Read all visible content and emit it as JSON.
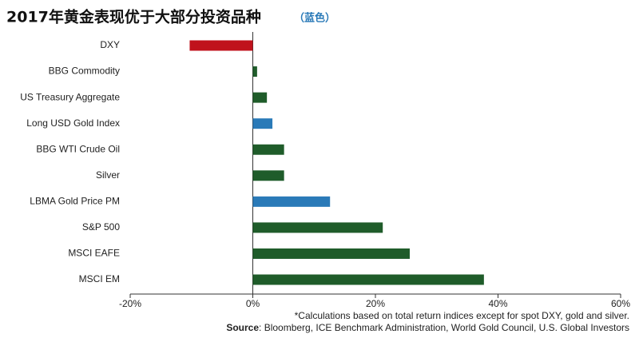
{
  "chart_data": {
    "type": "hbar",
    "title": "2017年黄金表现优于大部分投资品种",
    "subtitle": "（蓝色）",
    "categories": [
      "DXY",
      "BBG Commodity",
      "US Treasury Aggregate",
      "Long USD Gold Index",
      "BBG WTI Crude Oil",
      "Silver",
      "LBMA Gold Price PM",
      "S&P 500",
      "MSCI EAFE",
      "MSCI EM"
    ],
    "values": [
      -10.3,
      0.7,
      2.3,
      3.2,
      5.1,
      5.1,
      12.6,
      21.2,
      25.6,
      37.7
    ],
    "colors": [
      "#c0121c",
      "#1f5c2a",
      "#1f5c2a",
      "#2a7ab8",
      "#1f5c2a",
      "#1f5c2a",
      "#2a7ab8",
      "#1f5c2a",
      "#1f5c2a",
      "#1f5c2a"
    ],
    "xlim": [
      -20,
      60
    ],
    "xticks": [
      {
        "value": -20,
        "label": "-20%"
      },
      {
        "value": 0,
        "label": "0%"
      },
      {
        "value": 20,
        "label": "20%"
      },
      {
        "value": 40,
        "label": "40%"
      },
      {
        "value": 60,
        "label": "60%"
      }
    ],
    "note": "*Calculations based on total return indices except for spot DXY, gold and silver.",
    "source": {
      "label": "Source",
      "text": ": Bloomberg, ICE Benchmark Administration, World Gold Council, U.S. Global Investors"
    }
  }
}
